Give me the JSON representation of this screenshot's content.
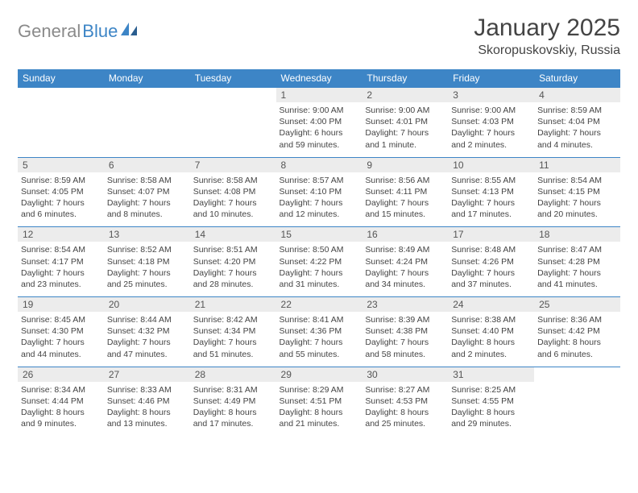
{
  "logo": {
    "text_gray": "General",
    "text_blue": "Blue"
  },
  "title": "January 2025",
  "location": "Skoropuskovskiy, Russia",
  "colors": {
    "header_bg": "#3d85c6",
    "header_text": "#ffffff",
    "daynum_bg": "#ececec",
    "rule": "#3d85c6",
    "logo_gray": "#8a8a8a",
    "logo_blue": "#3d85c6"
  },
  "weekdays": [
    "Sunday",
    "Monday",
    "Tuesday",
    "Wednesday",
    "Thursday",
    "Friday",
    "Saturday"
  ],
  "weeks": [
    [
      {
        "num": "",
        "sunrise": "",
        "sunset": "",
        "daylight": ""
      },
      {
        "num": "",
        "sunrise": "",
        "sunset": "",
        "daylight": ""
      },
      {
        "num": "",
        "sunrise": "",
        "sunset": "",
        "daylight": ""
      },
      {
        "num": "1",
        "sunrise": "Sunrise: 9:00 AM",
        "sunset": "Sunset: 4:00 PM",
        "daylight": "Daylight: 6 hours and 59 minutes."
      },
      {
        "num": "2",
        "sunrise": "Sunrise: 9:00 AM",
        "sunset": "Sunset: 4:01 PM",
        "daylight": "Daylight: 7 hours and 1 minute."
      },
      {
        "num": "3",
        "sunrise": "Sunrise: 9:00 AM",
        "sunset": "Sunset: 4:03 PM",
        "daylight": "Daylight: 7 hours and 2 minutes."
      },
      {
        "num": "4",
        "sunrise": "Sunrise: 8:59 AM",
        "sunset": "Sunset: 4:04 PM",
        "daylight": "Daylight: 7 hours and 4 minutes."
      }
    ],
    [
      {
        "num": "5",
        "sunrise": "Sunrise: 8:59 AM",
        "sunset": "Sunset: 4:05 PM",
        "daylight": "Daylight: 7 hours and 6 minutes."
      },
      {
        "num": "6",
        "sunrise": "Sunrise: 8:58 AM",
        "sunset": "Sunset: 4:07 PM",
        "daylight": "Daylight: 7 hours and 8 minutes."
      },
      {
        "num": "7",
        "sunrise": "Sunrise: 8:58 AM",
        "sunset": "Sunset: 4:08 PM",
        "daylight": "Daylight: 7 hours and 10 minutes."
      },
      {
        "num": "8",
        "sunrise": "Sunrise: 8:57 AM",
        "sunset": "Sunset: 4:10 PM",
        "daylight": "Daylight: 7 hours and 12 minutes."
      },
      {
        "num": "9",
        "sunrise": "Sunrise: 8:56 AM",
        "sunset": "Sunset: 4:11 PM",
        "daylight": "Daylight: 7 hours and 15 minutes."
      },
      {
        "num": "10",
        "sunrise": "Sunrise: 8:55 AM",
        "sunset": "Sunset: 4:13 PM",
        "daylight": "Daylight: 7 hours and 17 minutes."
      },
      {
        "num": "11",
        "sunrise": "Sunrise: 8:54 AM",
        "sunset": "Sunset: 4:15 PM",
        "daylight": "Daylight: 7 hours and 20 minutes."
      }
    ],
    [
      {
        "num": "12",
        "sunrise": "Sunrise: 8:54 AM",
        "sunset": "Sunset: 4:17 PM",
        "daylight": "Daylight: 7 hours and 23 minutes."
      },
      {
        "num": "13",
        "sunrise": "Sunrise: 8:52 AM",
        "sunset": "Sunset: 4:18 PM",
        "daylight": "Daylight: 7 hours and 25 minutes."
      },
      {
        "num": "14",
        "sunrise": "Sunrise: 8:51 AM",
        "sunset": "Sunset: 4:20 PM",
        "daylight": "Daylight: 7 hours and 28 minutes."
      },
      {
        "num": "15",
        "sunrise": "Sunrise: 8:50 AM",
        "sunset": "Sunset: 4:22 PM",
        "daylight": "Daylight: 7 hours and 31 minutes."
      },
      {
        "num": "16",
        "sunrise": "Sunrise: 8:49 AM",
        "sunset": "Sunset: 4:24 PM",
        "daylight": "Daylight: 7 hours and 34 minutes."
      },
      {
        "num": "17",
        "sunrise": "Sunrise: 8:48 AM",
        "sunset": "Sunset: 4:26 PM",
        "daylight": "Daylight: 7 hours and 37 minutes."
      },
      {
        "num": "18",
        "sunrise": "Sunrise: 8:47 AM",
        "sunset": "Sunset: 4:28 PM",
        "daylight": "Daylight: 7 hours and 41 minutes."
      }
    ],
    [
      {
        "num": "19",
        "sunrise": "Sunrise: 8:45 AM",
        "sunset": "Sunset: 4:30 PM",
        "daylight": "Daylight: 7 hours and 44 minutes."
      },
      {
        "num": "20",
        "sunrise": "Sunrise: 8:44 AM",
        "sunset": "Sunset: 4:32 PM",
        "daylight": "Daylight: 7 hours and 47 minutes."
      },
      {
        "num": "21",
        "sunrise": "Sunrise: 8:42 AM",
        "sunset": "Sunset: 4:34 PM",
        "daylight": "Daylight: 7 hours and 51 minutes."
      },
      {
        "num": "22",
        "sunrise": "Sunrise: 8:41 AM",
        "sunset": "Sunset: 4:36 PM",
        "daylight": "Daylight: 7 hours and 55 minutes."
      },
      {
        "num": "23",
        "sunrise": "Sunrise: 8:39 AM",
        "sunset": "Sunset: 4:38 PM",
        "daylight": "Daylight: 7 hours and 58 minutes."
      },
      {
        "num": "24",
        "sunrise": "Sunrise: 8:38 AM",
        "sunset": "Sunset: 4:40 PM",
        "daylight": "Daylight: 8 hours and 2 minutes."
      },
      {
        "num": "25",
        "sunrise": "Sunrise: 8:36 AM",
        "sunset": "Sunset: 4:42 PM",
        "daylight": "Daylight: 8 hours and 6 minutes."
      }
    ],
    [
      {
        "num": "26",
        "sunrise": "Sunrise: 8:34 AM",
        "sunset": "Sunset: 4:44 PM",
        "daylight": "Daylight: 8 hours and 9 minutes."
      },
      {
        "num": "27",
        "sunrise": "Sunrise: 8:33 AM",
        "sunset": "Sunset: 4:46 PM",
        "daylight": "Daylight: 8 hours and 13 minutes."
      },
      {
        "num": "28",
        "sunrise": "Sunrise: 8:31 AM",
        "sunset": "Sunset: 4:49 PM",
        "daylight": "Daylight: 8 hours and 17 minutes."
      },
      {
        "num": "29",
        "sunrise": "Sunrise: 8:29 AM",
        "sunset": "Sunset: 4:51 PM",
        "daylight": "Daylight: 8 hours and 21 minutes."
      },
      {
        "num": "30",
        "sunrise": "Sunrise: 8:27 AM",
        "sunset": "Sunset: 4:53 PM",
        "daylight": "Daylight: 8 hours and 25 minutes."
      },
      {
        "num": "31",
        "sunrise": "Sunrise: 8:25 AM",
        "sunset": "Sunset: 4:55 PM",
        "daylight": "Daylight: 8 hours and 29 minutes."
      },
      {
        "num": "",
        "sunrise": "",
        "sunset": "",
        "daylight": ""
      }
    ]
  ]
}
